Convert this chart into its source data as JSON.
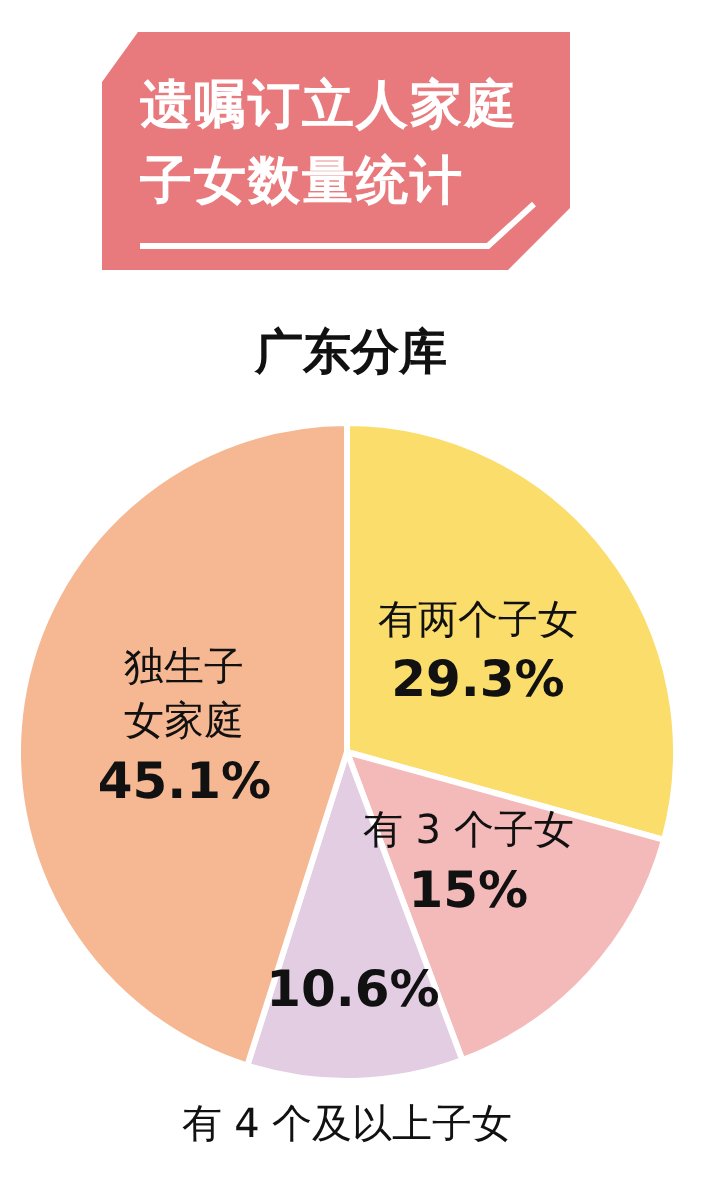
{
  "chart_data": {
    "type": "pie",
    "title": "遗嘱订立人家庭子女数量统计",
    "subtitle": "广东分库",
    "categories": [
      "有两个子女",
      "有 3 个子女",
      "有 4 个及以上子女",
      "独生子女家庭"
    ],
    "values": [
      29.3,
      15,
      10.6,
      45.1
    ],
    "colors": [
      "#fbdd6c",
      "#f4b9b9",
      "#e2cde3",
      "#f5b893"
    ],
    "value_labels": [
      "29.3%",
      "15%",
      "10.6%",
      "45.1%"
    ],
    "legend": false
  }
}
